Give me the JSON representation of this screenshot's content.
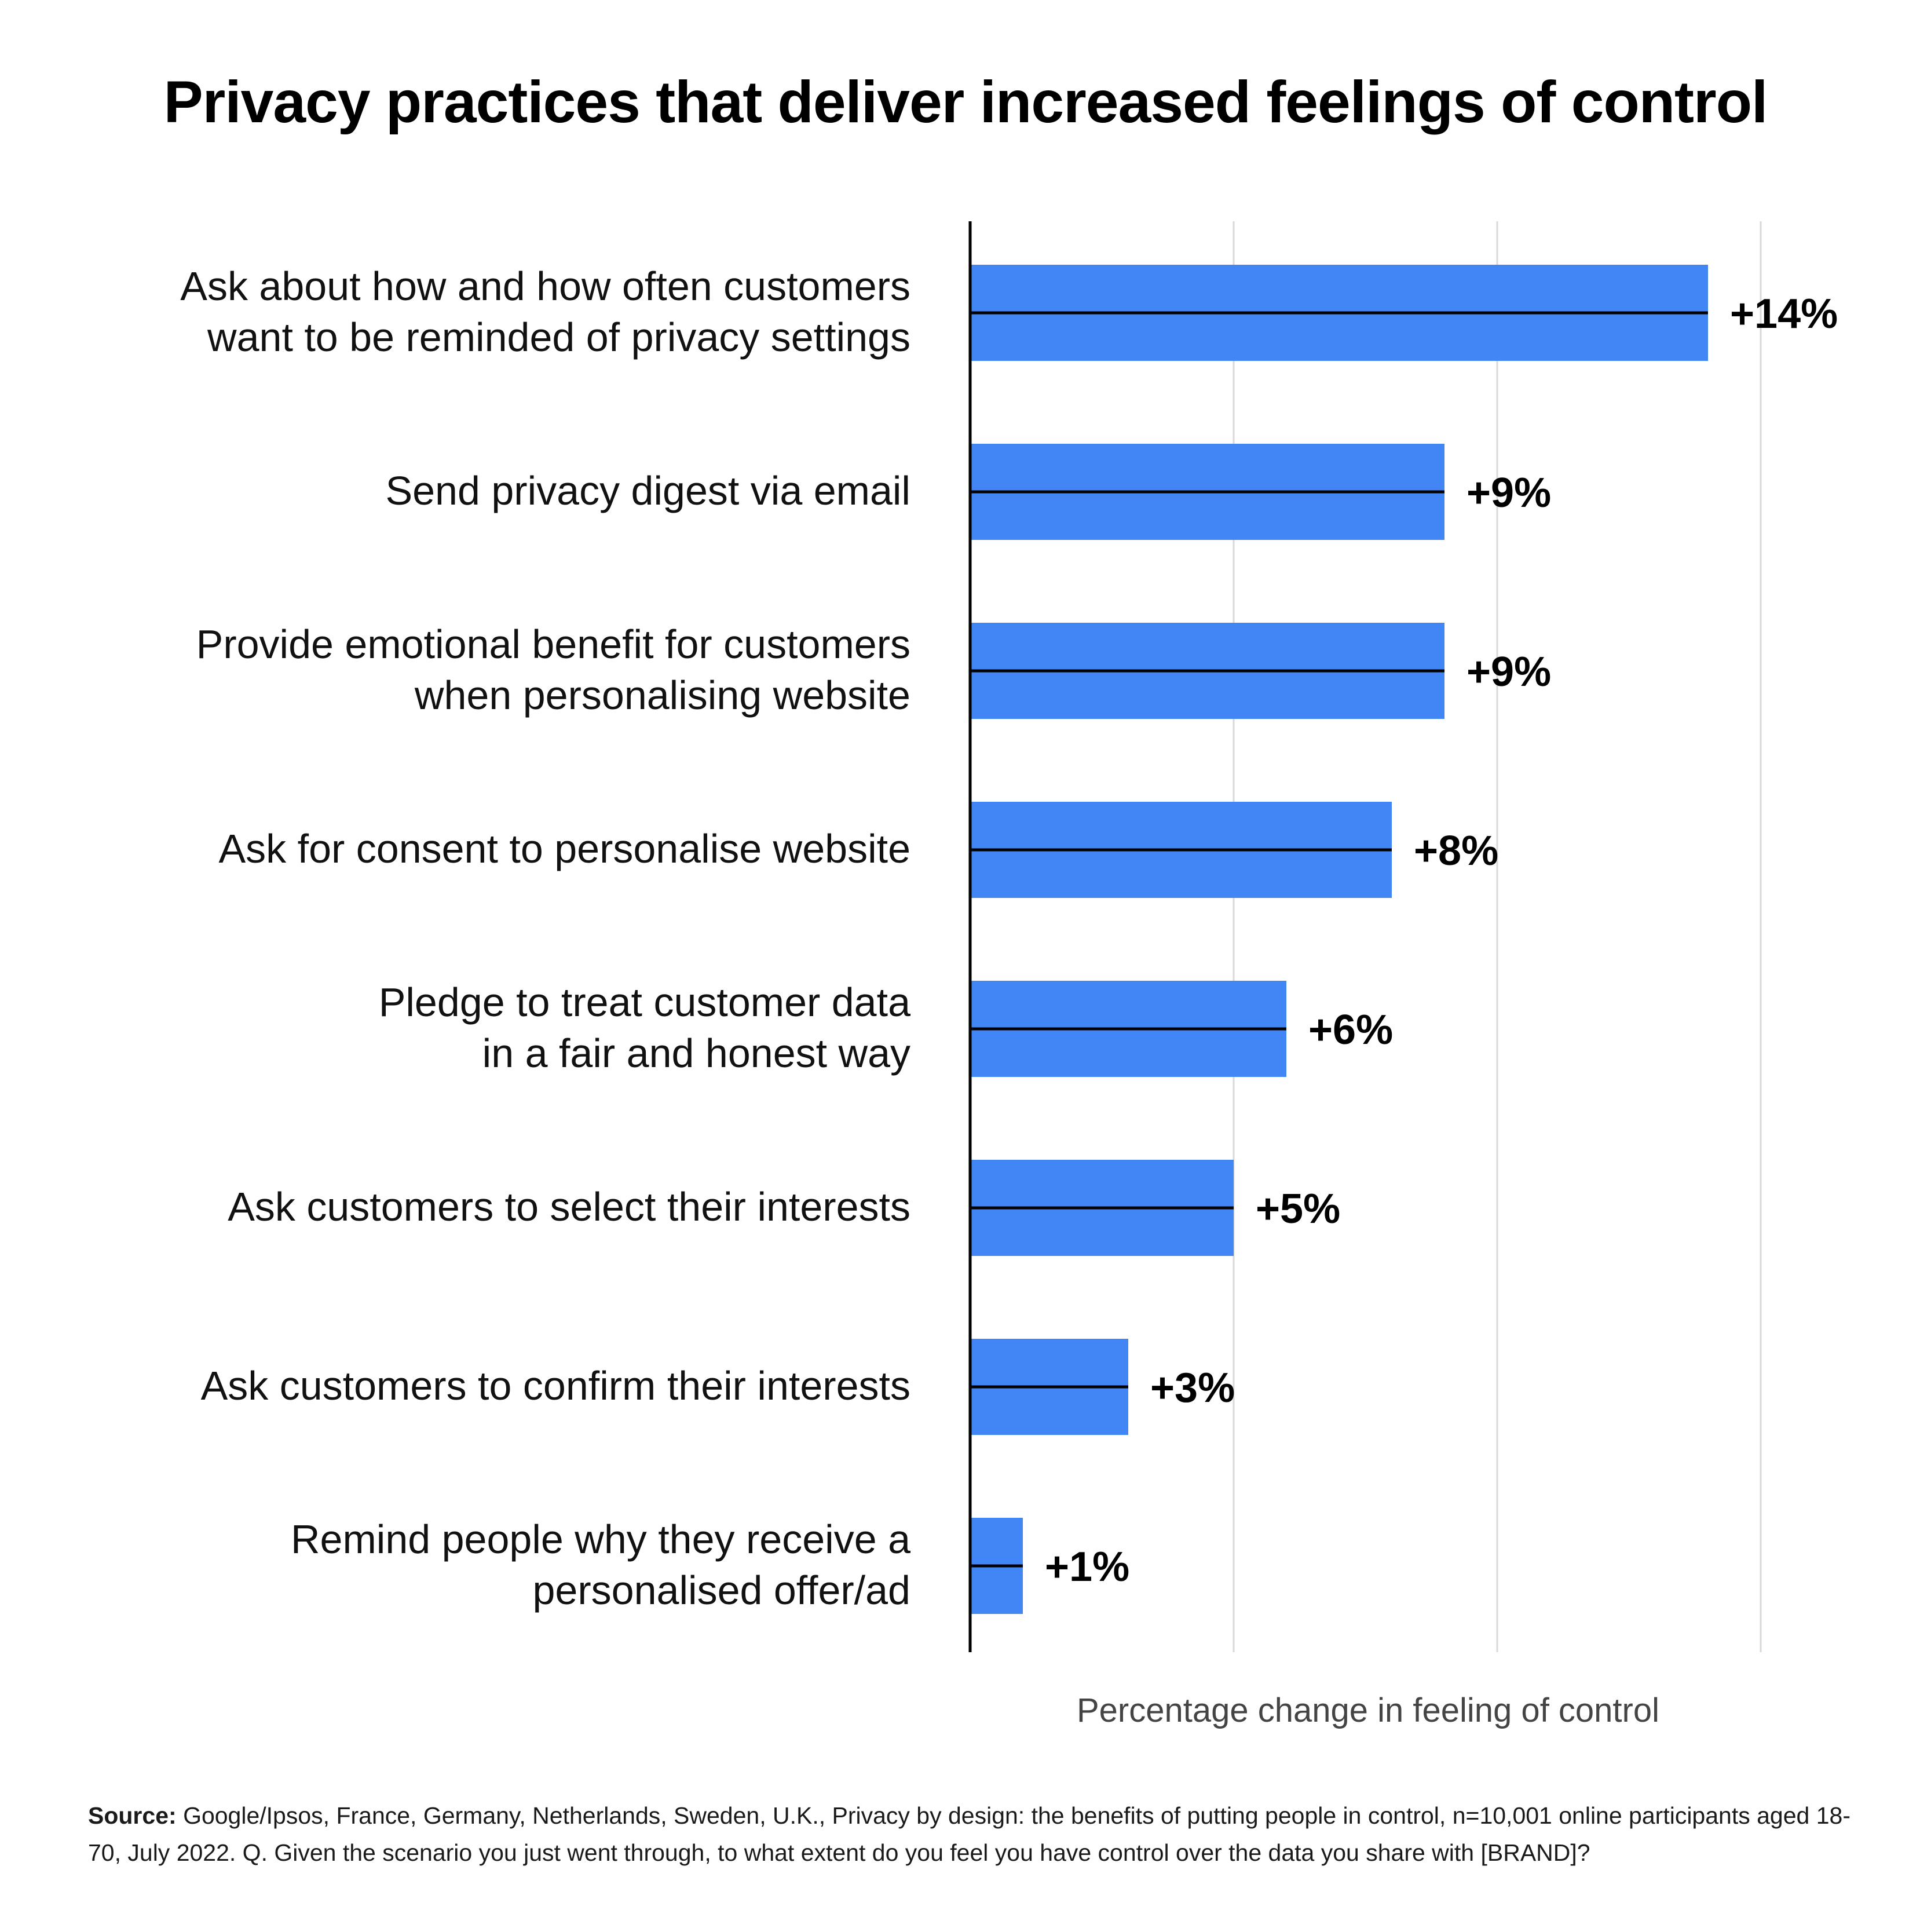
{
  "chart_data": {
    "type": "bar",
    "orientation": "horizontal",
    "title": "Privacy practices that deliver increased feelings of control",
    "xlabel": "Percentage change in feeling of control",
    "ylabel": "",
    "xlim": [
      0,
      15
    ],
    "grid": "vertical",
    "categories": [
      [
        "Ask about how and how often customers",
        "want to be reminded of privacy settings"
      ],
      [
        "Send privacy digest via email"
      ],
      [
        "Provide emotional benefit for customers",
        "when personalising website"
      ],
      [
        "Ask for consent to personalise website"
      ],
      [
        "Pledge to treat customer data",
        "in a fair and honest way"
      ],
      [
        "Ask customers to select their interests"
      ],
      [
        "Ask customers to confirm their interests"
      ],
      [
        "Remind people why they receive a",
        "personalised offer/ad"
      ]
    ],
    "values": [
      14,
      9,
      9,
      8,
      6,
      5,
      3,
      1
    ],
    "value_labels": [
      "+14%",
      "+9%",
      "+9%",
      "+8%",
      "+6%",
      "+5%",
      "+3%",
      "+1%"
    ],
    "bar_color": "#4285F4"
  },
  "source": {
    "label": "Source:",
    "text": "Google/Ipsos, France, Germany, Netherlands, Sweden, U.K., Privacy by design: the benefits of putting people in control, n=10,001 online participants aged 18-70, July 2022. Q. Given the scenario you just went through, to what extent do you feel you have control over the data you share with [BRAND]?"
  }
}
